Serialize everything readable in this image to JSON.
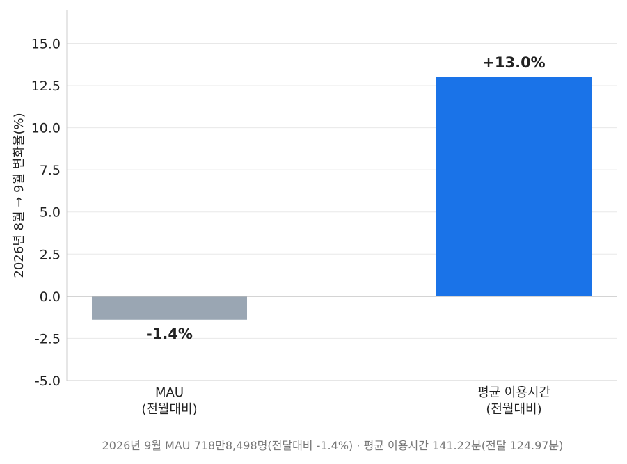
{
  "chart_data": {
    "type": "bar",
    "title": "",
    "ylabel": "2026년 8월 → 9월 변화율(%)",
    "xlabel": "",
    "ylim": [
      -5.0,
      17.0
    ],
    "yticks": [
      "-5.0",
      "-2.5",
      "0.0",
      "2.5",
      "5.0",
      "7.5",
      "10.0",
      "12.5",
      "15.0"
    ],
    "yticks_values": [
      -5.0,
      -2.5,
      0.0,
      2.5,
      5.0,
      7.5,
      10.0,
      12.5,
      15.0
    ],
    "grid": true,
    "categories": [
      [
        "MAU",
        "(전월대비)"
      ],
      [
        "평균 이용시간",
        "(전월대비)"
      ]
    ],
    "values": [
      -1.4,
      13.0
    ],
    "data_labels": [
      "-1.4%",
      "+13.0%"
    ],
    "colors": [
      "#9aa6b3",
      "#1a73e8"
    ],
    "footnote": "2026년 9월 MAU 718만8,498명(전달대비 -1.4%) · 평균 이용시간 141.22분(전달 124.97분)"
  }
}
